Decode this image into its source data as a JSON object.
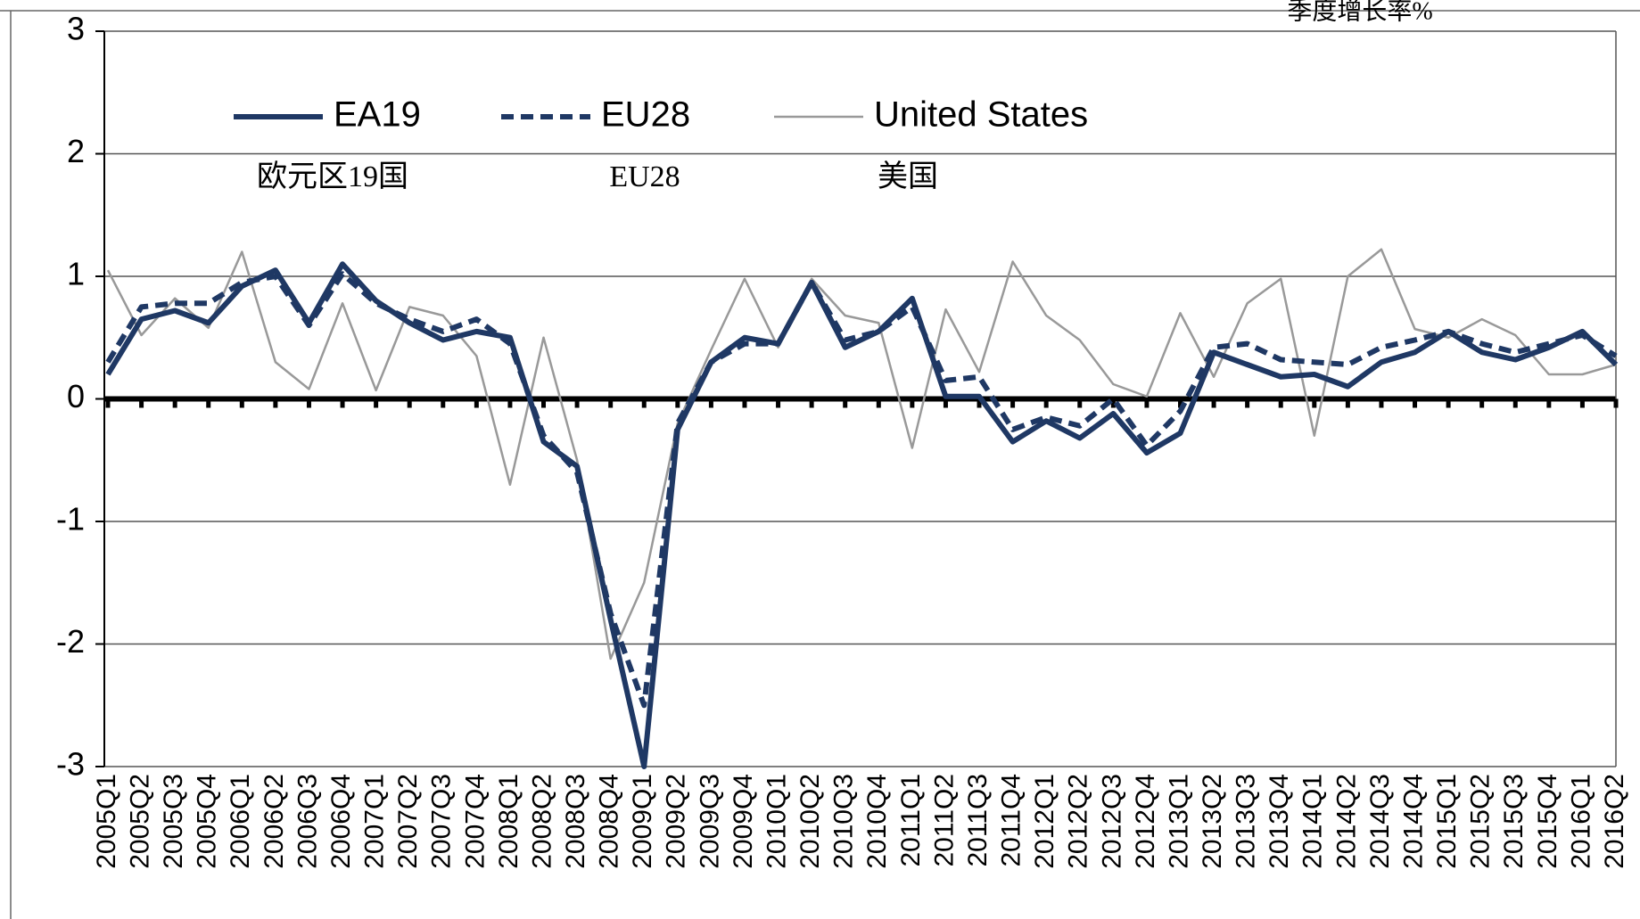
{
  "chart_data": {
    "type": "line",
    "title": "季度增长率%",
    "annotations": [
      "欧元区19国",
      "EU28",
      "美国"
    ],
    "categories": [
      "2005Q1",
      "2005Q2",
      "2005Q3",
      "2005Q4",
      "2006Q1",
      "2006Q2",
      "2006Q3",
      "2006Q4",
      "2007Q1",
      "2007Q2",
      "2007Q3",
      "2007Q4",
      "2008Q1",
      "2008Q2",
      "2008Q3",
      "2008Q4",
      "2009Q1",
      "2009Q2",
      "2009Q3",
      "2009Q4",
      "2010Q1",
      "2010Q2",
      "2010Q3",
      "2010Q4",
      "2011Q1",
      "2011Q2",
      "2011Q3",
      "2011Q4",
      "2012Q1",
      "2012Q2",
      "2012Q3",
      "2012Q4",
      "2013Q1",
      "2013Q2",
      "2013Q3",
      "2013Q4",
      "2014Q1",
      "2014Q2",
      "2014Q3",
      "2014Q4",
      "2015Q1",
      "2015Q2",
      "2015Q3",
      "2015Q4",
      "2016Q1",
      "2016Q2"
    ],
    "series": [
      {
        "name": "EA19",
        "color": "#1f3864",
        "style": "solid",
        "values": [
          0.2,
          0.65,
          0.72,
          0.62,
          0.92,
          1.05,
          0.62,
          1.1,
          0.8,
          0.62,
          0.48,
          0.55,
          0.5,
          -0.35,
          -0.55,
          -1.8,
          -3.0,
          -0.25,
          0.3,
          0.5,
          0.45,
          0.95,
          0.42,
          0.55,
          0.82,
          0.02,
          0.02,
          -0.35,
          -0.18,
          -0.32,
          -0.12,
          -0.44,
          -0.28,
          0.38,
          0.28,
          0.18,
          0.2,
          0.1,
          0.3,
          0.38,
          0.55,
          0.38,
          0.32,
          0.42,
          0.55,
          0.28
        ]
      },
      {
        "name": "EU28",
        "color": "#1f3864",
        "style": "dashed",
        "values": [
          0.3,
          0.75,
          0.78,
          0.78,
          0.95,
          1.0,
          0.6,
          1.02,
          0.78,
          0.65,
          0.55,
          0.65,
          0.45,
          -0.3,
          -0.6,
          -1.75,
          -2.5,
          -0.2,
          0.3,
          0.45,
          0.45,
          0.95,
          0.48,
          0.55,
          0.75,
          0.15,
          0.18,
          -0.25,
          -0.15,
          -0.22,
          0.0,
          -0.38,
          -0.1,
          0.42,
          0.45,
          0.32,
          0.3,
          0.28,
          0.42,
          0.48,
          0.55,
          0.45,
          0.38,
          0.45,
          0.52,
          0.35
        ]
      },
      {
        "name": "United States",
        "color": "#999999",
        "style": "thin",
        "values": [
          1.05,
          0.52,
          0.82,
          0.58,
          1.2,
          0.3,
          0.08,
          0.78,
          0.07,
          0.75,
          0.68,
          0.35,
          -0.7,
          0.5,
          -0.5,
          -2.12,
          -1.5,
          -0.2,
          0.4,
          0.98,
          0.42,
          0.98,
          0.68,
          0.62,
          -0.4,
          0.73,
          0.22,
          1.12,
          0.68,
          0.48,
          0.12,
          0.02,
          0.7,
          0.18,
          0.78,
          0.98,
          -0.3,
          1.0,
          1.22,
          0.57,
          0.5,
          0.65,
          0.52,
          0.2,
          0.2,
          0.28
        ]
      }
    ],
    "ylim": [
      -3,
      3
    ],
    "yticks": [
      -3,
      -2,
      -1,
      0,
      1,
      2,
      3
    ],
    "grid": true
  }
}
